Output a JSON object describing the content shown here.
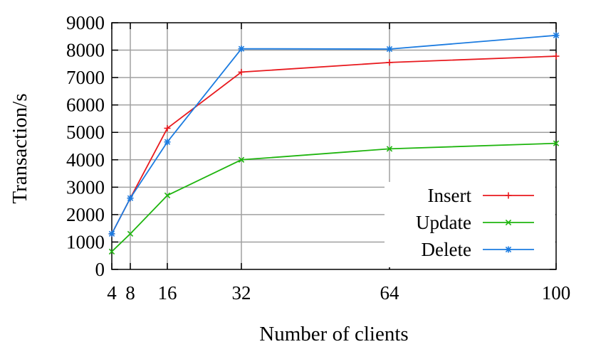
{
  "chart_data": {
    "type": "line",
    "title": "",
    "xlabel": "Number of clients",
    "ylabel": "Transaction/s",
    "x": [
      4,
      8,
      16,
      32,
      64,
      100
    ],
    "x_ticks": [
      "4",
      "8",
      "16",
      "32",
      "64",
      "100"
    ],
    "y_ticks": [
      "0",
      "1000",
      "2000",
      "3000",
      "4000",
      "5000",
      "6000",
      "7000",
      "8000",
      "9000"
    ],
    "xlim": [
      4,
      100
    ],
    "ylim": [
      0,
      9000
    ],
    "grid": true,
    "legend_position": "bottom-right",
    "series": [
      {
        "name": "Insert",
        "color": "#e8191e",
        "marker": "plus",
        "values": [
          1300,
          2600,
          5150,
          7200,
          7550,
          7780
        ]
      },
      {
        "name": "Update",
        "color": "#1fb50f",
        "marker": "cross",
        "values": [
          650,
          1300,
          2700,
          4000,
          4400,
          4600
        ]
      },
      {
        "name": "Delete",
        "color": "#1b7be0",
        "marker": "star",
        "values": [
          1300,
          2600,
          4650,
          8050,
          8040,
          8540
        ]
      }
    ]
  }
}
